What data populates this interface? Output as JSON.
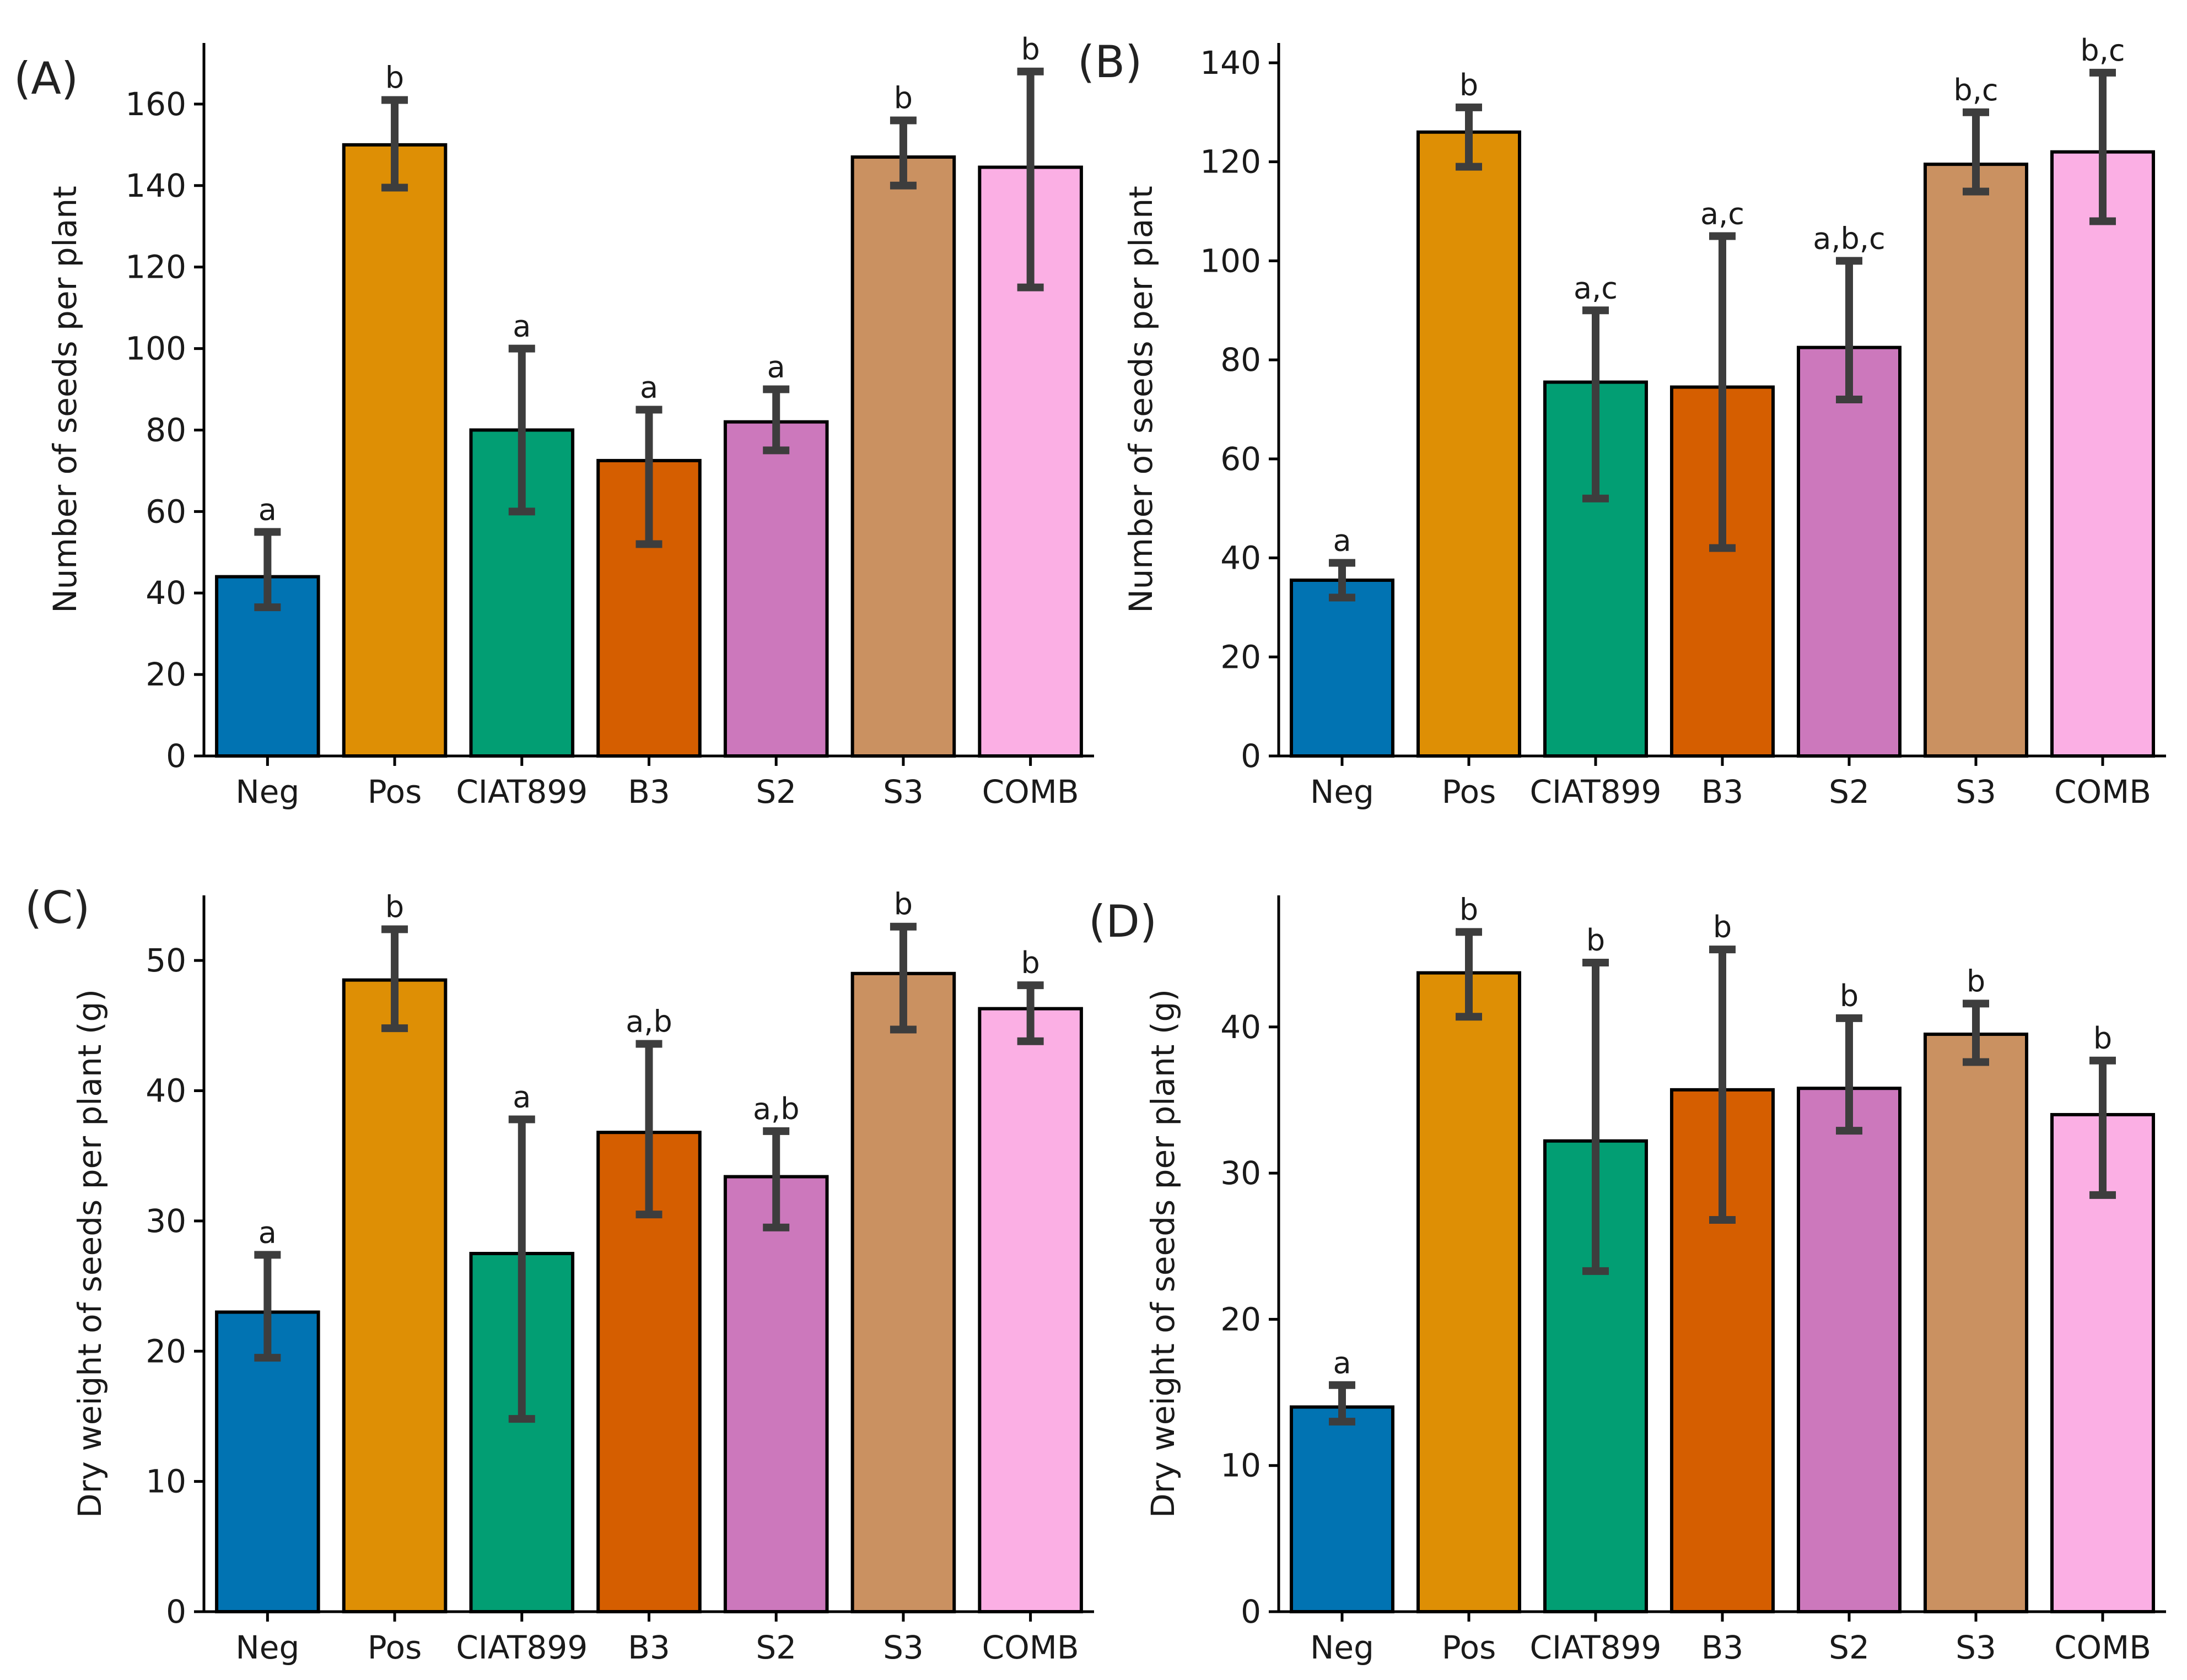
{
  "figure": {
    "title": ""
  },
  "colors": [
    "#0173b2",
    "#de8f05",
    "#029e73",
    "#d55e00",
    "#cc78bc",
    "#ca9161",
    "#fbafe4"
  ],
  "chart_data": [
    {
      "panel": "(A)",
      "type": "bar",
      "title": "",
      "xlabel": "",
      "ylabel": "Number of seeds per plant",
      "categories": [
        "Neg",
        "Pos",
        "CIAT899",
        "B3",
        "S2",
        "S3",
        "COMB"
      ],
      "values": [
        44,
        150,
        80,
        72.5,
        82,
        147,
        144.5
      ],
      "err_low": [
        36.5,
        139.5,
        60,
        52,
        75,
        140,
        115
      ],
      "err_high": [
        55,
        161,
        100,
        85,
        90,
        156,
        168
      ],
      "letters": [
        "a",
        "b",
        "a",
        "a",
        "a",
        "b",
        "b"
      ],
      "ylim": [
        0,
        175
      ],
      "yticks": [
        0,
        20,
        40,
        60,
        80,
        100,
        120,
        140,
        160
      ],
      "grid": false
    },
    {
      "panel": "(B)",
      "type": "bar",
      "title": "",
      "xlabel": "",
      "ylabel": "Number of seeds per plant",
      "categories": [
        "Neg",
        "Pos",
        "CIAT899",
        "B3",
        "S2",
        "S3",
        "COMB"
      ],
      "values": [
        35.5,
        126,
        75.5,
        74.5,
        82.5,
        119.5,
        122
      ],
      "err_low": [
        32,
        119,
        52,
        42,
        72,
        114,
        108
      ],
      "err_high": [
        39,
        131,
        90,
        105,
        100,
        130,
        138
      ],
      "letters": [
        "a",
        "b",
        "a,c",
        "a,c",
        "a,b,c",
        "b,c",
        "b,c"
      ],
      "ylim": [
        0,
        144
      ],
      "yticks": [
        0,
        20,
        40,
        60,
        80,
        100,
        120,
        140
      ],
      "grid": false
    },
    {
      "panel": "(C)",
      "type": "bar",
      "title": "",
      "xlabel": "",
      "ylabel": "Dry weight of seeds per plant (g)",
      "categories": [
        "Neg",
        "Pos",
        "CIAT899",
        "B3",
        "S2",
        "S3",
        "COMB"
      ],
      "values": [
        23,
        48.5,
        27.5,
        36.8,
        33.4,
        49,
        46.3
      ],
      "err_low": [
        19.5,
        44.8,
        14.8,
        30.5,
        29.5,
        44.7,
        43.8
      ],
      "err_high": [
        27.4,
        52.4,
        37.8,
        43.6,
        36.9,
        52.6,
        48.1
      ],
      "letters": [
        "a",
        "b",
        "a",
        "a,b",
        "a,b",
        "b",
        "b"
      ],
      "ylim": [
        0,
        55
      ],
      "yticks": [
        0,
        10,
        20,
        30,
        40,
        50
      ],
      "grid": false
    },
    {
      "panel": "(D)",
      "type": "bar",
      "title": "",
      "xlabel": "",
      "ylabel": "Dry weight of seeds per plant (g)",
      "categories": [
        "Neg",
        "Pos",
        "CIAT899",
        "B3",
        "S2",
        "S3",
        "COMB"
      ],
      "values": [
        14,
        43.7,
        32.2,
        35.7,
        35.8,
        39.5,
        34
      ],
      "err_low": [
        13,
        40.7,
        23.3,
        26.8,
        32.9,
        37.6,
        28.5
      ],
      "err_high": [
        15.5,
        46.5,
        44.4,
        45.3,
        40.6,
        41.6,
        37.7
      ],
      "letters": [
        "a",
        "b",
        "b",
        "b",
        "b",
        "b",
        "b"
      ],
      "ylim": [
        0,
        49
      ],
      "yticks": [
        0,
        10,
        20,
        30,
        40
      ],
      "grid": false
    }
  ]
}
